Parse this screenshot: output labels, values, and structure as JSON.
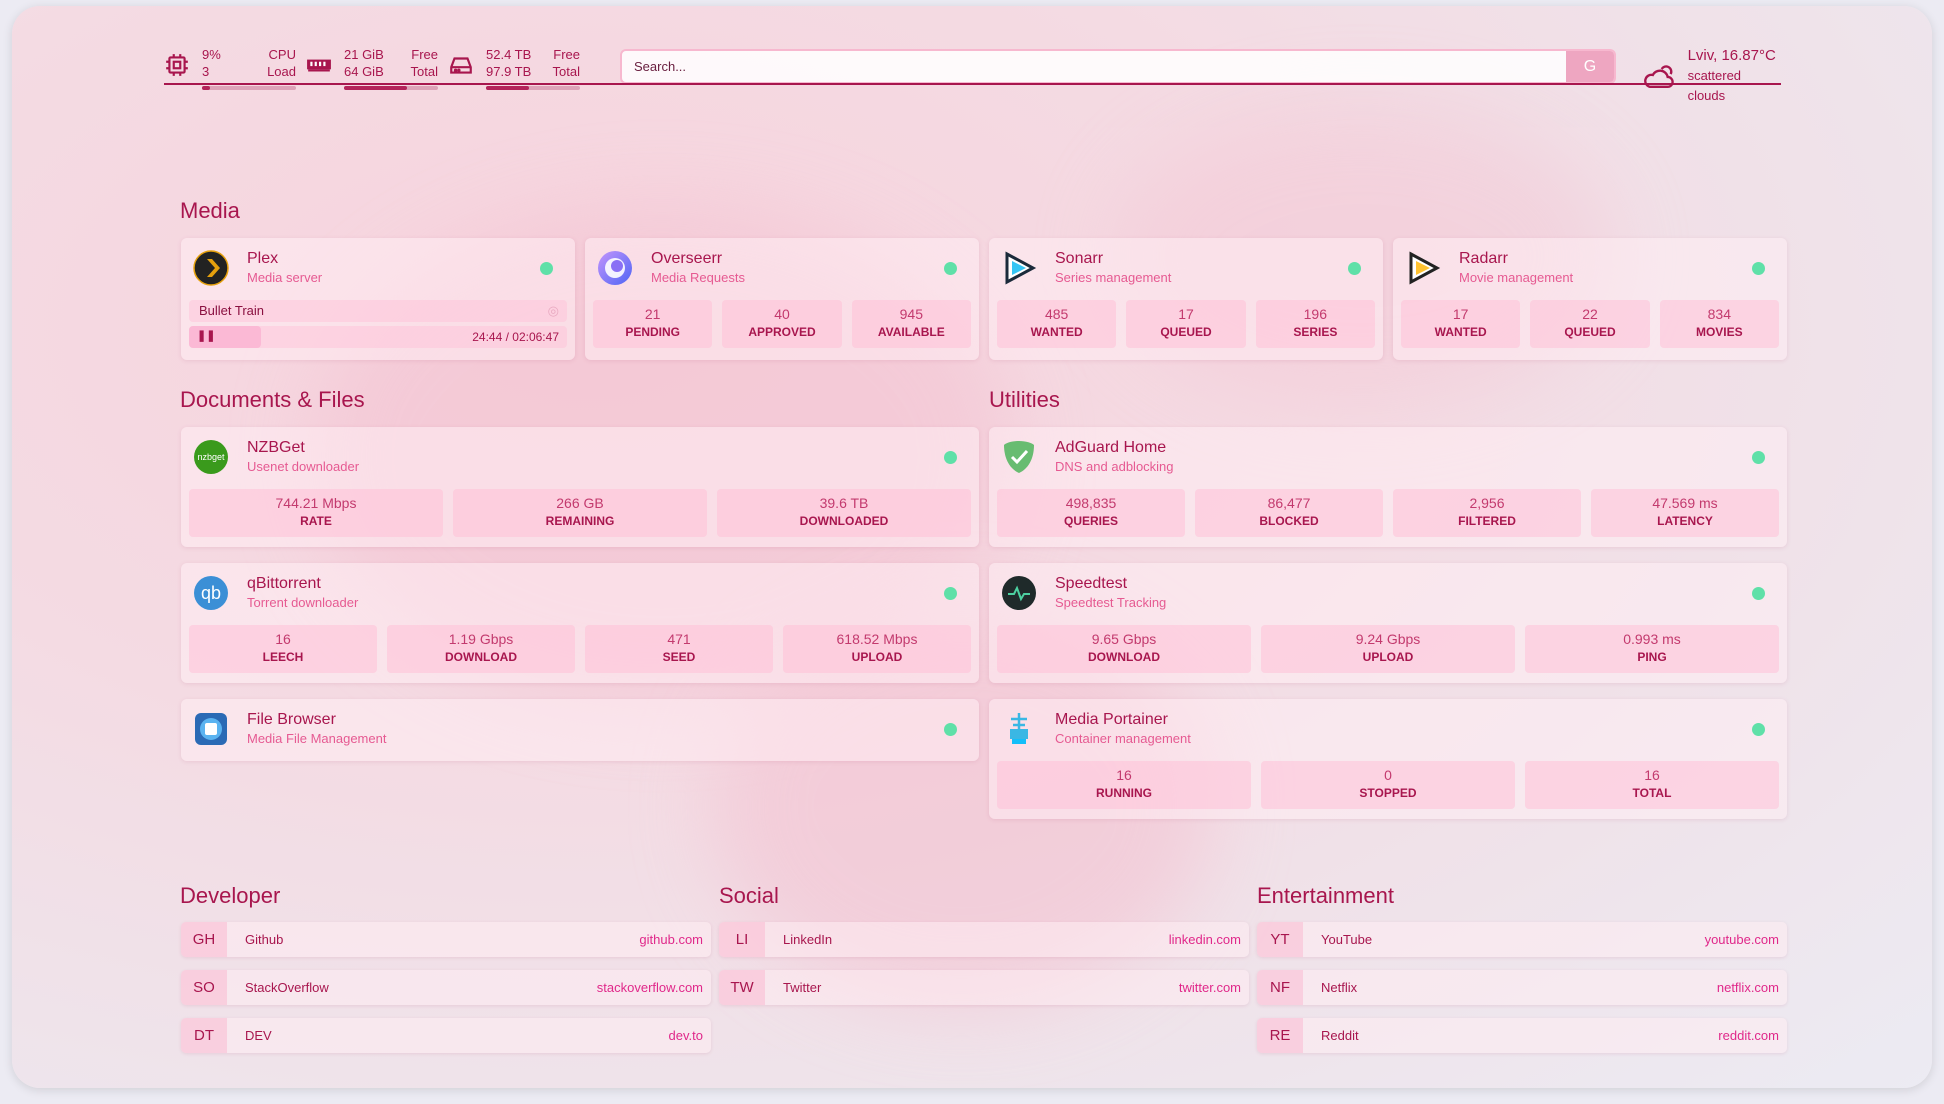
{
  "header": {
    "cpu": {
      "value": "9%",
      "sub": "3",
      "label1": "CPU",
      "label2": "Load",
      "fill": 0.09
    },
    "memory": {
      "value": "21 GiB",
      "sub": "64 GiB",
      "label1": "Free",
      "label2": "Total",
      "fill": 0.67
    },
    "disk": {
      "value": "52.4 TB",
      "sub": "97.9 TB",
      "label1": "Free",
      "label2": "Total",
      "fill": 0.46
    },
    "search": {
      "placeholder": "Search...",
      "provider": "G"
    },
    "weather": {
      "location": "Lviv, 16.87°C",
      "condition": "scattered clouds",
      "icon": "cloud-sun-icon"
    }
  },
  "sections": {
    "media": "Media",
    "docs": "Documents & Files",
    "utilities": "Utilities",
    "developer": "Developer",
    "social": "Social",
    "entertainment": "Entertainment"
  },
  "media": [
    {
      "name": "Plex",
      "desc": "Media server",
      "playing": "Bullet Train",
      "time": "24:44 / 02:06:47"
    },
    {
      "name": "Overseerr",
      "desc": "Media Requests",
      "stats": [
        {
          "v": "21",
          "l": "PENDING"
        },
        {
          "v": "40",
          "l": "APPROVED"
        },
        {
          "v": "945",
          "l": "AVAILABLE"
        }
      ]
    },
    {
      "name": "Sonarr",
      "desc": "Series management",
      "stats": [
        {
          "v": "485",
          "l": "WANTED"
        },
        {
          "v": "17",
          "l": "QUEUED"
        },
        {
          "v": "196",
          "l": "SERIES"
        }
      ]
    },
    {
      "name": "Radarr",
      "desc": "Movie management",
      "stats": [
        {
          "v": "17",
          "l": "WANTED"
        },
        {
          "v": "22",
          "l": "QUEUED"
        },
        {
          "v": "834",
          "l": "MOVIES"
        }
      ]
    }
  ],
  "docs": [
    {
      "name": "NZBGet",
      "desc": "Usenet downloader",
      "logo": "nzbget",
      "stats": [
        {
          "v": "744.21 Mbps",
          "l": "RATE"
        },
        {
          "v": "266 GB",
          "l": "REMAINING"
        },
        {
          "v": "39.6 TB",
          "l": "DOWNLOADED"
        }
      ]
    },
    {
      "name": "qBittorrent",
      "desc": "Torrent downloader",
      "logo": "qb",
      "stats": [
        {
          "v": "16",
          "l": "LEECH"
        },
        {
          "v": "1.19 Gbps",
          "l": "DOWNLOAD"
        },
        {
          "v": "471",
          "l": "SEED"
        },
        {
          "v": "618.52 Mbps",
          "l": "UPLOAD"
        }
      ]
    },
    {
      "name": "File Browser",
      "desc": "Media File Management"
    }
  ],
  "utilities": [
    {
      "name": "AdGuard Home",
      "desc": "DNS and adblocking",
      "stats": [
        {
          "v": "498,835",
          "l": "QUERIES"
        },
        {
          "v": "86,477",
          "l": "BLOCKED"
        },
        {
          "v": "2,956",
          "l": "FILTERED"
        },
        {
          "v": "47.569 ms",
          "l": "LATENCY"
        }
      ]
    },
    {
      "name": "Speedtest",
      "desc": "Speedtest Tracking",
      "stats": [
        {
          "v": "9.65 Gbps",
          "l": "DOWNLOAD"
        },
        {
          "v": "9.24 Gbps",
          "l": "UPLOAD"
        },
        {
          "v": "0.993 ms",
          "l": "PING"
        }
      ]
    },
    {
      "name": "Media Portainer",
      "desc": "Container management",
      "stats": [
        {
          "v": "16",
          "l": "RUNNING"
        },
        {
          "v": "0",
          "l": "STOPPED"
        },
        {
          "v": "16",
          "l": "TOTAL"
        }
      ]
    }
  ],
  "bookmarks": {
    "developer": [
      {
        "a": "GH",
        "n": "Github",
        "u": "github.com"
      },
      {
        "a": "SO",
        "n": "StackOverflow",
        "u": "stackoverflow.com"
      },
      {
        "a": "DT",
        "n": "DEV",
        "u": "dev.to"
      }
    ],
    "social": [
      {
        "a": "LI",
        "n": "LinkedIn",
        "u": "linkedin.com"
      },
      {
        "a": "TW",
        "n": "Twitter",
        "u": "twitter.com"
      }
    ],
    "entertainment": [
      {
        "a": "YT",
        "n": "YouTube",
        "u": "youtube.com"
      },
      {
        "a": "NF",
        "n": "Netflix",
        "u": "netflix.com"
      },
      {
        "a": "RE",
        "n": "Reddit",
        "u": "reddit.com"
      }
    ]
  },
  "colors": {
    "accent": "#a8164e",
    "link": "#e0288a",
    "status_ok": "#5fe0a8"
  }
}
